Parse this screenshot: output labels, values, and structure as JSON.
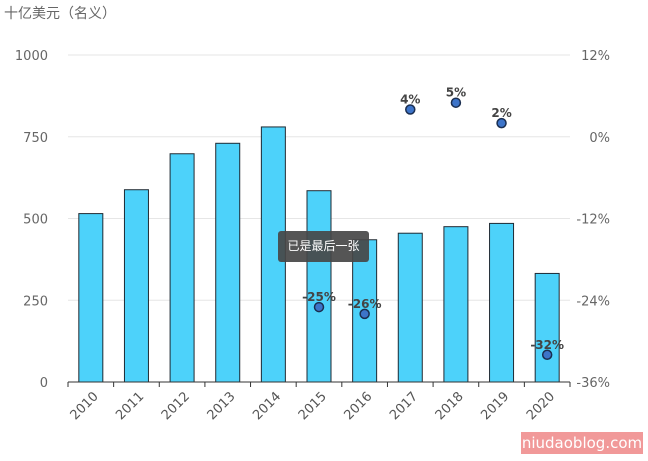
{
  "unit_label": "十亿美元（名义）",
  "tooltip_text": "已是最后一张",
  "watermark_text": "niudaoblog.com",
  "chart_data": {
    "type": "bar",
    "categories": [
      "2010",
      "2011",
      "2012",
      "2013",
      "2014",
      "2015",
      "2016",
      "2017",
      "2018",
      "2019",
      "2020"
    ],
    "values": [
      515,
      588,
      698,
      730,
      780,
      585,
      435,
      455,
      475,
      485,
      332
    ],
    "ylim": [
      0,
      1000
    ],
    "y_ticks": [
      0,
      250,
      500,
      750,
      1000
    ],
    "y_tick_labels": [
      "0",
      "250",
      "500",
      "750",
      "1000"
    ],
    "growth": {
      "points": [
        {
          "category": "2015",
          "value": -25,
          "label": "-25%"
        },
        {
          "category": "2016",
          "value": -26,
          "label": "-26%"
        },
        {
          "category": "2017",
          "value": 4,
          "label": "4%"
        },
        {
          "category": "2018",
          "value": 5,
          "label": "5%"
        },
        {
          "category": "2019",
          "value": 2,
          "label": "2%"
        },
        {
          "category": "2020",
          "value": -32,
          "label": "-32%"
        }
      ],
      "ylim": [
        -36,
        12
      ],
      "y_ticks": [
        12,
        0,
        -12,
        -24,
        -36
      ],
      "y_tick_labels": [
        "12%",
        "0%",
        "-12%",
        "-24%",
        "-36%"
      ]
    },
    "colors": {
      "bar": "#4dd2fa",
      "bar_stroke": "#1f2a33",
      "point": "#3d74c9",
      "point_stroke": "#1a2e50"
    },
    "grid": true
  }
}
